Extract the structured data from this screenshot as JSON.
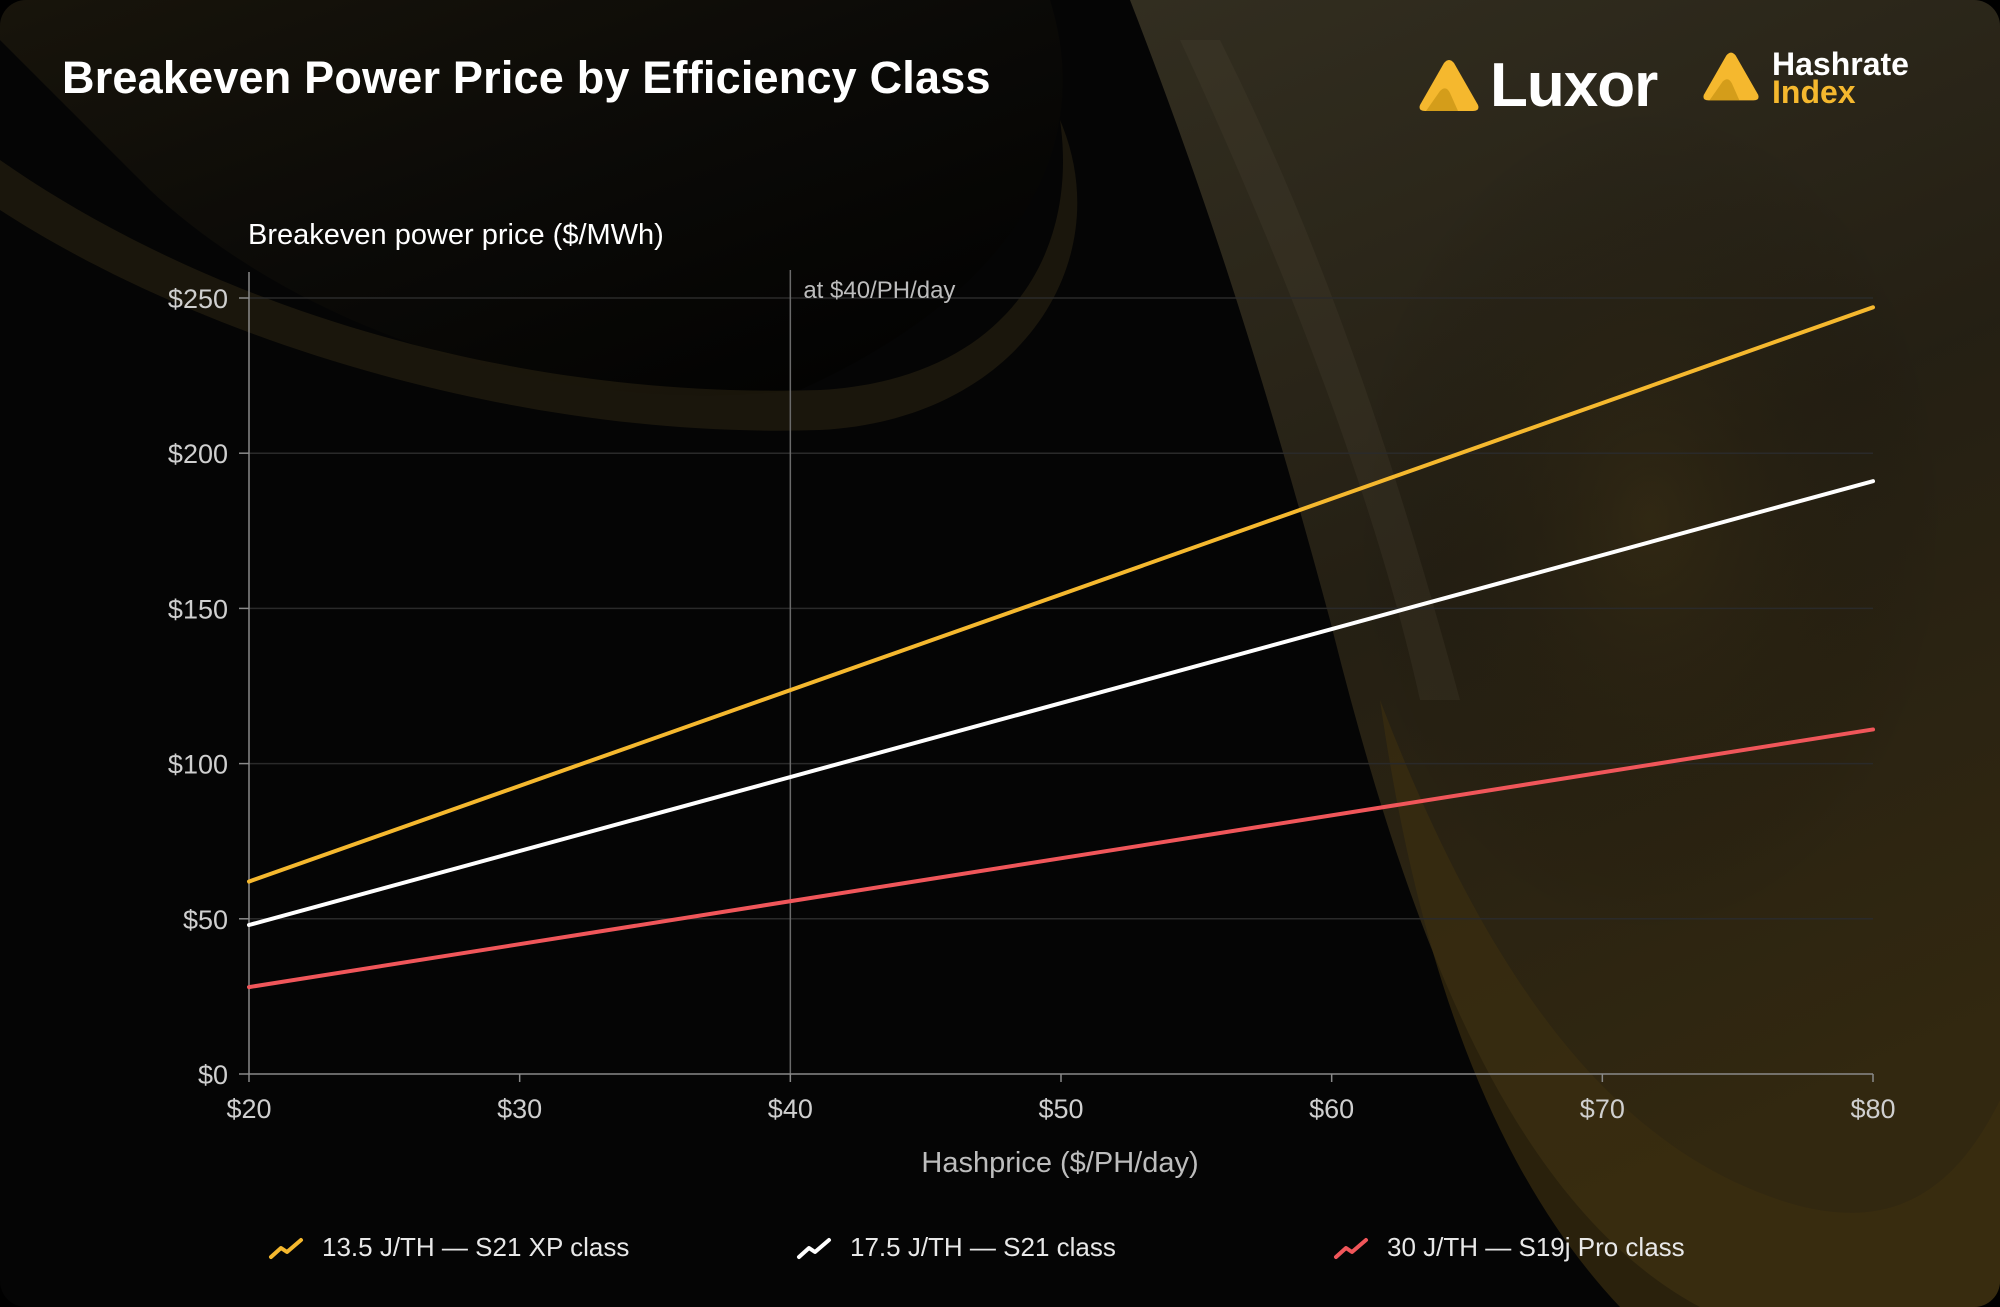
{
  "header": {
    "title": "Breakeven Power Price by Efficiency Class",
    "brand_luxor": "Luxor",
    "brand_hashrate": "Hashrate",
    "brand_index": "Index"
  },
  "colors": {
    "accent": "#f5b82e",
    "series_1": "#f5b82e",
    "series_2": "#ffffff",
    "series_3": "#f0565a",
    "grid": "#2a2a2a",
    "axis": "#8a8a8a"
  },
  "chart_data": {
    "type": "line",
    "ylabel": "Breakeven power price ($/MWh)",
    "xlabel": "Hashprice ($/PH/day)",
    "x": [
      20,
      80
    ],
    "xlim": [
      20,
      80
    ],
    "ylim": [
      0,
      250
    ],
    "xticks": [
      20,
      30,
      40,
      50,
      60,
      70,
      80
    ],
    "xtick_labels": [
      "$20",
      "$30",
      "$40",
      "$50",
      "$60",
      "$70",
      "$80"
    ],
    "yticks": [
      0,
      50,
      100,
      150,
      200,
      250
    ],
    "ytick_labels": [
      "$0",
      "$50",
      "$100",
      "$150",
      "$200",
      "$250"
    ],
    "grid": true,
    "legend_position": "bottom",
    "annotation": {
      "x": 40,
      "text": "at $40/PH/day"
    },
    "series": [
      {
        "name": "13.5 J/TH — S21 XP class",
        "color": "#f5b82e",
        "values": [
          62,
          247
        ]
      },
      {
        "name": "17.5 J/TH — S21 class",
        "color": "#ffffff",
        "values": [
          48,
          191
        ]
      },
      {
        "name": "30 J/TH — S19j Pro class",
        "color": "#f0565a",
        "values": [
          28,
          111
        ]
      }
    ]
  }
}
